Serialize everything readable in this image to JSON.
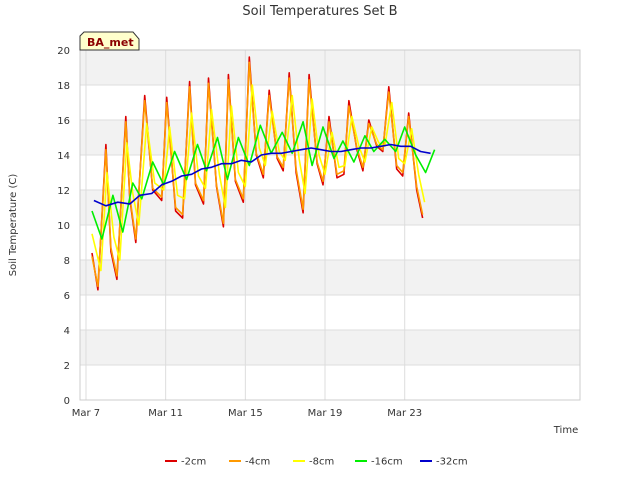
{
  "chart_data": {
    "type": "line",
    "title": "Soil Temperatures Set B",
    "xlabel": "Time",
    "ylabel": "Soil Temperature (C)",
    "badge": "BA_met",
    "xlim": [
      -0.3,
      24.8
    ],
    "ylim": [
      0,
      20
    ],
    "yticks": [
      0,
      2,
      4,
      6,
      8,
      10,
      12,
      14,
      16,
      18,
      20
    ],
    "xticks": [
      {
        "label": "Mar 7",
        "day": 0
      },
      {
        "label": "Mar 11",
        "day": 4
      },
      {
        "label": "Mar 15",
        "day": 8
      },
      {
        "label": "Mar 19",
        "day": 12
      },
      {
        "label": "Mar 23",
        "day": 16
      }
    ],
    "grid": true,
    "legend_position": "bottom",
    "series": [
      {
        "name": "-2cm",
        "color": "#dd0000",
        "x": [
          0.3,
          0.6,
          1.0,
          1.25,
          1.55,
          2.0,
          2.2,
          2.5,
          2.95,
          3.35,
          3.8,
          4.05,
          4.5,
          4.85,
          5.2,
          5.5,
          5.9,
          6.15,
          6.55,
          6.9,
          7.15,
          7.5,
          7.9,
          8.2,
          8.55,
          8.9,
          9.2,
          9.6,
          9.9,
          10.2,
          10.55,
          10.9,
          11.2,
          11.6,
          11.9,
          12.2,
          12.6,
          12.95,
          13.2,
          13.6,
          13.9,
          14.2,
          14.6,
          14.9,
          15.2,
          15.6,
          15.9,
          16.2,
          16.6,
          16.9
        ],
        "y": [
          8.4,
          6.3,
          14.6,
          8.5,
          6.9,
          16.2,
          11.5,
          9.0,
          17.4,
          12.0,
          11.4,
          17.3,
          10.8,
          10.4,
          18.2,
          12.3,
          11.2,
          18.4,
          12.2,
          9.9,
          18.6,
          12.5,
          11.3,
          19.6,
          14.0,
          12.7,
          17.7,
          13.8,
          13.1,
          18.7,
          13.0,
          10.7,
          18.6,
          13.5,
          12.3,
          16.2,
          12.7,
          12.9,
          17.1,
          14.3,
          13.1,
          16.0,
          14.5,
          14.2,
          17.9,
          13.2,
          12.8,
          16.4,
          12.0,
          10.4
        ]
      },
      {
        "name": "-4cm",
        "color": "#ff9900",
        "x": [
          0.3,
          0.6,
          1.0,
          1.25,
          1.55,
          2.0,
          2.2,
          2.5,
          2.95,
          3.35,
          3.8,
          4.05,
          4.5,
          4.85,
          5.2,
          5.5,
          5.9,
          6.15,
          6.55,
          6.9,
          7.15,
          7.5,
          7.9,
          8.2,
          8.55,
          8.9,
          9.2,
          9.6,
          9.9,
          10.2,
          10.55,
          10.9,
          11.2,
          11.6,
          11.9,
          12.2,
          12.6,
          12.95,
          13.2,
          13.6,
          13.9,
          14.2,
          14.6,
          14.9,
          15.2,
          15.6,
          15.9,
          16.2,
          16.6,
          16.9
        ],
        "y": [
          8.2,
          6.5,
          14.3,
          8.7,
          7.1,
          15.9,
          11.6,
          9.2,
          17.1,
          12.1,
          11.6,
          17.0,
          11.0,
          10.6,
          17.9,
          12.4,
          11.4,
          18.1,
          12.3,
          10.1,
          18.3,
          12.6,
          11.5,
          19.3,
          14.1,
          12.9,
          17.4,
          13.9,
          13.3,
          18.4,
          13.2,
          10.9,
          18.3,
          13.6,
          12.5,
          15.9,
          12.9,
          13.1,
          16.8,
          14.4,
          13.3,
          15.8,
          14.6,
          14.3,
          17.6,
          13.4,
          13.0,
          16.2,
          12.2,
          10.6
        ]
      },
      {
        "name": "-8cm",
        "color": "#ffff00",
        "x": [
          0.3,
          0.75,
          1.05,
          1.4,
          1.7,
          2.05,
          2.35,
          2.65,
          3.05,
          3.45,
          3.9,
          4.2,
          4.6,
          4.95,
          5.3,
          5.65,
          6.0,
          6.3,
          6.7,
          7.0,
          7.3,
          7.65,
          8.0,
          8.35,
          8.7,
          9.0,
          9.35,
          9.7,
          10.0,
          10.35,
          10.7,
          11.0,
          11.35,
          11.7,
          12.0,
          12.35,
          12.7,
          13.0,
          13.35,
          13.7,
          14.0,
          14.35,
          14.7,
          15.0,
          15.35,
          15.7,
          16.0,
          16.35,
          16.7,
          17.0
        ],
        "y": [
          9.5,
          7.4,
          13.0,
          9.3,
          8.0,
          14.7,
          11.8,
          10.0,
          15.8,
          12.4,
          12.0,
          15.6,
          11.7,
          11.5,
          16.4,
          12.8,
          12.1,
          16.6,
          12.9,
          11.0,
          16.8,
          13.0,
          12.2,
          18.0,
          14.4,
          13.4,
          16.5,
          14.2,
          13.7,
          17.4,
          13.8,
          11.8,
          17.2,
          14.0,
          12.9,
          15.3,
          13.3,
          13.4,
          16.2,
          14.5,
          13.6,
          15.6,
          14.7,
          14.5,
          17.0,
          13.8,
          13.5,
          15.5,
          12.9,
          11.3
        ]
      },
      {
        "name": "-16cm",
        "color": "#00ee00",
        "x": [
          0.3,
          0.8,
          1.35,
          1.85,
          2.35,
          2.8,
          3.35,
          3.9,
          4.45,
          5.05,
          5.6,
          6.05,
          6.6,
          7.1,
          7.65,
          8.2,
          8.75,
          9.3,
          9.85,
          10.35,
          10.9,
          11.35,
          11.9,
          12.45,
          12.9,
          13.45,
          14.0,
          14.45,
          15.0,
          15.55,
          16.0,
          16.55,
          17.05,
          17.5
        ],
        "y": [
          10.8,
          9.2,
          11.7,
          9.6,
          12.4,
          11.5,
          13.6,
          12.3,
          14.2,
          12.6,
          14.6,
          13.1,
          15.0,
          12.6,
          15.0,
          13.4,
          15.7,
          14.1,
          15.3,
          14.1,
          15.9,
          13.4,
          15.6,
          13.8,
          14.8,
          13.6,
          15.1,
          14.2,
          14.9,
          14.2,
          15.6,
          14.0,
          13.0,
          14.3
        ]
      },
      {
        "name": "-32cm",
        "color": "#0000cc",
        "x": [
          0.4,
          1.0,
          1.6,
          2.2,
          2.7,
          3.3,
          3.8,
          4.3,
          4.8,
          5.3,
          5.8,
          6.3,
          6.8,
          7.3,
          7.8,
          8.3,
          8.8,
          9.3,
          9.8,
          10.3,
          10.8,
          11.3,
          11.8,
          12.3,
          12.8,
          13.3,
          13.8,
          14.3,
          14.8,
          15.3,
          15.8,
          16.3,
          16.8,
          17.3
        ],
        "y": [
          11.4,
          11.1,
          11.3,
          11.2,
          11.7,
          11.8,
          12.3,
          12.5,
          12.8,
          12.9,
          13.2,
          13.3,
          13.5,
          13.5,
          13.7,
          13.6,
          14.0,
          14.1,
          14.1,
          14.2,
          14.3,
          14.4,
          14.3,
          14.2,
          14.2,
          14.3,
          14.4,
          14.4,
          14.5,
          14.6,
          14.5,
          14.5,
          14.2,
          14.1
        ]
      }
    ]
  }
}
